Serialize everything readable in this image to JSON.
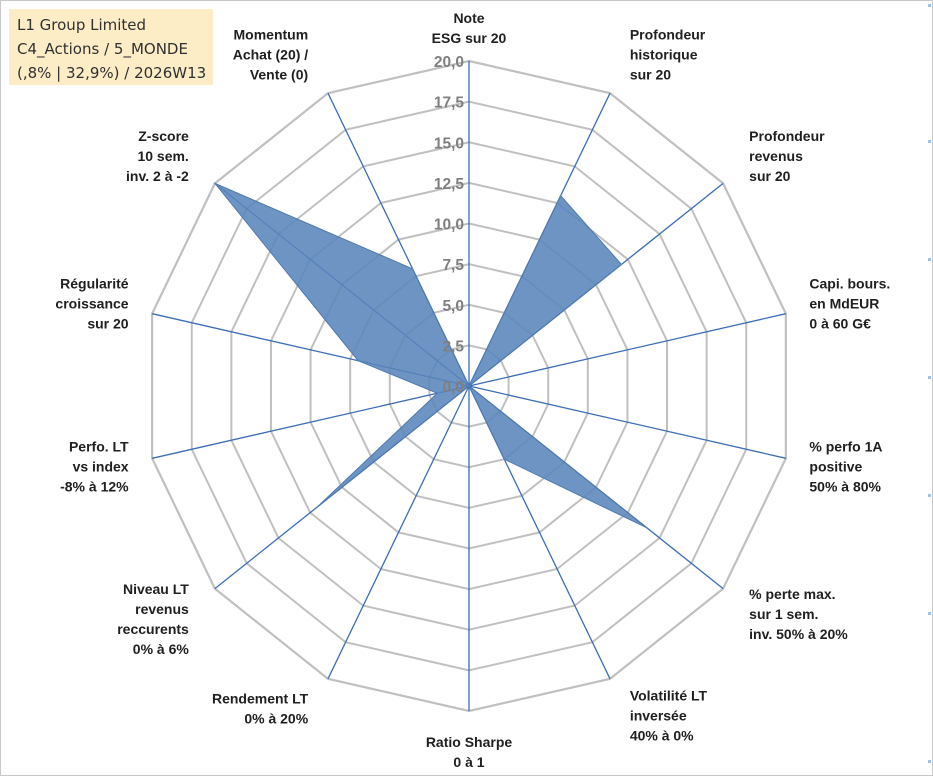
{
  "info_box": {
    "line1": "L1 Group Limited",
    "line2": "C4_Actions / 5_MONDE",
    "line3": "(,8% | 32,9%) / 2026W13"
  },
  "colors": {
    "grid": "#c0c0c0",
    "spoke": "#3c6db4",
    "fill": "#5a85bc",
    "tick": "#7f7f7f",
    "label": "#202020",
    "info_bg": "#fdedc7"
  },
  "chart_data": {
    "type": "radar",
    "title": "",
    "rmin": 0,
    "rmax": 20,
    "tick_step": 2.5,
    "tick_labels": [
      "0,0",
      "2,5",
      "5,0",
      "7,5",
      "10,0",
      "12,5",
      "15,0",
      "17,5",
      "20,0"
    ],
    "axes": [
      {
        "label": [
          "Note",
          "ESG sur 20"
        ],
        "value": 0
      },
      {
        "label": [
          "Profondeur",
          "historique",
          "sur 20"
        ],
        "value": 13
      },
      {
        "label": [
          "Profondeur",
          "revenus",
          "sur 20"
        ],
        "value": 12
      },
      {
        "label": [
          "Capi. bours.",
          "en MdEUR",
          "0 à 60 G€"
        ],
        "value": 0
      },
      {
        "label": [
          "% perfo 1A",
          "positive",
          "50% à 80%"
        ],
        "value": 0
      },
      {
        "label": [
          "% perte max.",
          "sur 1 sem.",
          "inv. 50% à 20%"
        ],
        "value": 14
      },
      {
        "label": [
          "Volatilité LT",
          "inversée",
          "40% à 0%"
        ],
        "value": 5
      },
      {
        "label": [
          "Ratio Sharpe",
          "0 à 1"
        ],
        "value": 0
      },
      {
        "label": [
          "Rendement LT",
          "0% à 20%"
        ],
        "value": 0
      },
      {
        "label": [
          "Niveau LT",
          "revenus",
          "reccurents",
          "0% à 6%"
        ],
        "value": 12
      },
      {
        "label": [
          "Perfo. LT",
          "vs index",
          "-8% à 12%"
        ],
        "value": 2
      },
      {
        "label": [
          "Régularité",
          "croissance",
          "sur 20"
        ],
        "value": 7
      },
      {
        "label": [
          "Z-score",
          "10 sem.",
          "inv. 2 à -2"
        ],
        "value": 20
      },
      {
        "label": [
          "Momentum",
          "Achat (20) /",
          "Vente (0)"
        ],
        "value": 8
      }
    ]
  }
}
